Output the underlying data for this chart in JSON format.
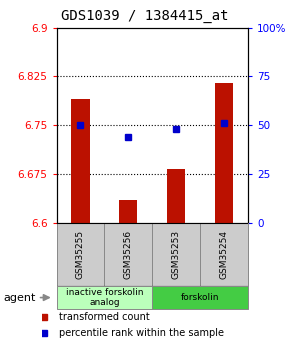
{
  "title": "GDS1039 / 1384415_at",
  "samples": [
    "GSM35255",
    "GSM35256",
    "GSM35253",
    "GSM35254"
  ],
  "bar_values": [
    6.79,
    6.635,
    6.683,
    6.815
  ],
  "percentile_values": [
    50,
    44,
    48,
    51
  ],
  "ylim_left": [
    6.6,
    6.9
  ],
  "ylim_right": [
    0,
    100
  ],
  "yticks_left": [
    6.6,
    6.675,
    6.75,
    6.825,
    6.9
  ],
  "ytick_labels_left": [
    "6.6",
    "6.675",
    "6.75",
    "6.825",
    "6.9"
  ],
  "yticks_right": [
    0,
    25,
    50,
    75,
    100
  ],
  "ytick_labels_right": [
    "0",
    "25",
    "50",
    "75",
    "100%"
  ],
  "hlines": [
    6.675,
    6.75,
    6.825
  ],
  "bar_color": "#bb1100",
  "dot_color": "#0000cc",
  "bar_width": 0.38,
  "groups": [
    {
      "label": "inactive forskolin\nanalog",
      "samples": [
        0,
        1
      ],
      "color": "#bbffbb"
    },
    {
      "label": "forskolin",
      "samples": [
        2,
        3
      ],
      "color": "#44cc44"
    }
  ],
  "agent_label": "agent",
  "legend_red": "transformed count",
  "legend_blue": "percentile rank within the sample",
  "title_fontsize": 10,
  "tick_fontsize": 7.5,
  "background_plot": "#ffffff",
  "background_label": "#cccccc"
}
